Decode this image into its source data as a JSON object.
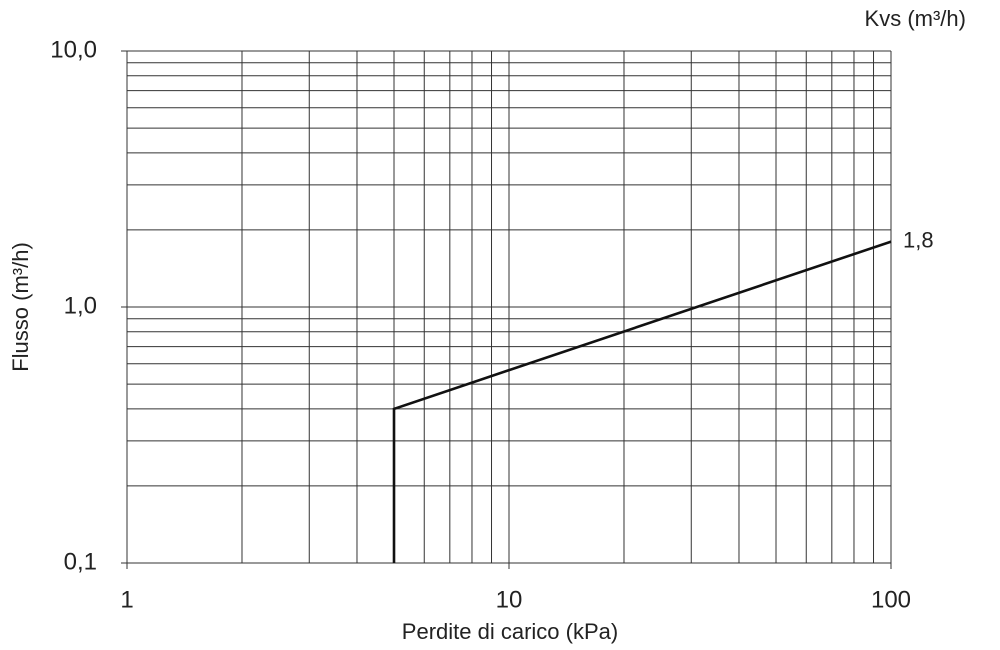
{
  "chart_data": {
    "type": "line",
    "log_x": true,
    "log_y": true,
    "grid": true,
    "x_label": "Perdite di carico (kPa)",
    "y_label": "Flusso (m³/h)",
    "annotation": "Kvs (m³/h)",
    "x": [
      5,
      5,
      100
    ],
    "series": [
      {
        "color": "#111111",
        "values": [
          0.1,
          0.4,
          1.8
        ],
        "value_labels": [
          null,
          null,
          "1,8"
        ]
      }
    ],
    "xlim": [
      1,
      100
    ],
    "xticks": [
      1,
      10,
      100
    ],
    "xminor": [
      2,
      3,
      4,
      5,
      6,
      7,
      8,
      9,
      20,
      30,
      40,
      50,
      60,
      70,
      80,
      90
    ],
    "ylim": [
      0.1,
      10
    ],
    "yticks": [
      {
        "value": 0.1,
        "label": "0,1"
      },
      {
        "value": 1,
        "label": "1,0"
      },
      {
        "value": 10,
        "label": "10,0"
      }
    ],
    "yminor": [
      0.2,
      0.3,
      0.4,
      0.5,
      0.6,
      0.7,
      0.8,
      0.9,
      2,
      3,
      4,
      5,
      6,
      7,
      8,
      9
    ]
  }
}
